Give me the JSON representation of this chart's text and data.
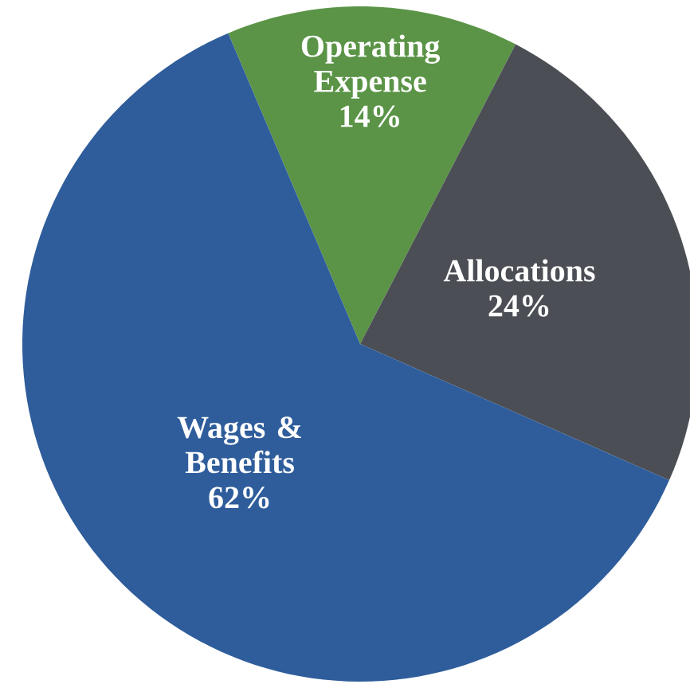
{
  "chart_data": {
    "type": "pie",
    "categories": [
      "Operating Expense",
      "Allocations",
      "Wages & Benefits"
    ],
    "values": [
      14,
      24,
      62
    ],
    "value_labels": [
      "14%",
      "24%",
      "62%"
    ],
    "colors": [
      "#5b9447",
      "#4b4e54",
      "#2f5d9b"
    ]
  }
}
